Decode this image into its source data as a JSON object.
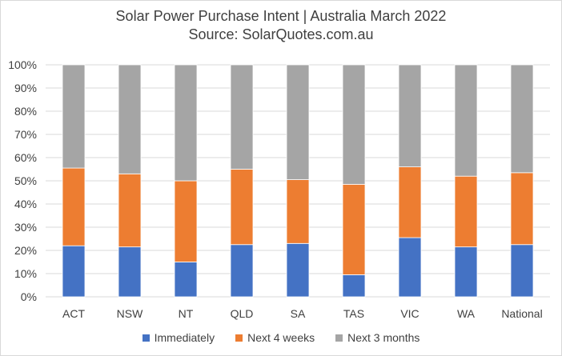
{
  "chart_data": {
    "type": "bar",
    "stacked": true,
    "title": "Solar Power Purchase Intent | Australia March 2022",
    "subtitle": "Source: SolarQuotes.com.au",
    "categories": [
      "ACT",
      "NSW",
      "NT",
      "QLD",
      "SA",
      "TAS",
      "VIC",
      "WA",
      "National"
    ],
    "ylim": [
      0,
      100
    ],
    "y_ticks": [
      "0%",
      "10%",
      "20%",
      "30%",
      "40%",
      "50%",
      "60%",
      "70%",
      "80%",
      "90%",
      "100%"
    ],
    "grid": true,
    "legend_position": "bottom",
    "series": [
      {
        "name": "Immediately",
        "color": "#4472c4",
        "values": [
          22,
          21.5,
          15,
          22.5,
          23,
          9.5,
          25.5,
          21.5,
          22.5
        ]
      },
      {
        "name": "Next 4 weeks",
        "color": "#ed7d31",
        "values": [
          33.5,
          31.5,
          35,
          32.5,
          27.5,
          39,
          30.5,
          30.5,
          31
        ]
      },
      {
        "name": "Next 3 months",
        "color": "#a5a5a5",
        "values": [
          44.5,
          47,
          50,
          45,
          49.5,
          51.5,
          44,
          48,
          46.5
        ]
      }
    ]
  }
}
